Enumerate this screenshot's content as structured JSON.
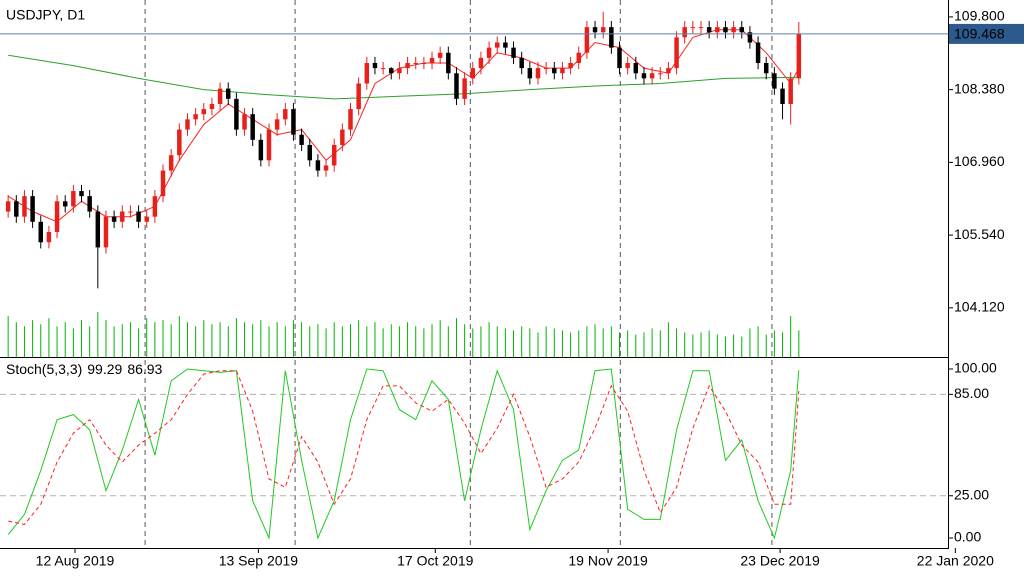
{
  "chart_data": [
    {
      "type": "candlestick",
      "title": "USDJPY, D1",
      "up_color": "#e8201c",
      "down_color": "#000000",
      "open": [
        106.0,
        106.2,
        105.9,
        106.3,
        105.8,
        105.4,
        105.6,
        106.2,
        106.1,
        106.4,
        106.3,
        106.0,
        105.3,
        105.9,
        105.8,
        106.0,
        106.0,
        105.8,
        105.9,
        106.3,
        106.8,
        107.1,
        107.6,
        107.8,
        107.9,
        108.0,
        108.1,
        108.4,
        108.2,
        107.6,
        107.9,
        107.4,
        107.0,
        107.6,
        107.8,
        108.0,
        107.5,
        107.3,
        107.0,
        106.8,
        106.9,
        107.3,
        107.6,
        108.0,
        108.5,
        108.9,
        108.8,
        108.8,
        108.7,
        108.8,
        108.9,
        108.9,
        108.9,
        109.0,
        109.1,
        108.7,
        108.2,
        108.6,
        108.8,
        109.0,
        109.2,
        109.3,
        109.2,
        109.0,
        108.8,
        108.6,
        108.8,
        108.8,
        108.7,
        108.8,
        108.9,
        109.1,
        109.6,
        109.5,
        109.6,
        109.2,
        108.8,
        108.9,
        108.7,
        108.6,
        108.7,
        108.7,
        108.8,
        109.4,
        109.6,
        109.6,
        109.6,
        109.5,
        109.6,
        109.5,
        109.6,
        109.5,
        109.3,
        108.9,
        108.7,
        108.4,
        108.1,
        108.6
      ],
      "high": [
        106.32,
        106.32,
        106.42,
        106.42,
        105.92,
        105.72,
        106.32,
        106.32,
        106.52,
        106.52,
        106.42,
        106.12,
        106.02,
        106.02,
        106.12,
        106.12,
        106.12,
        106.02,
        106.42,
        106.92,
        107.22,
        107.72,
        107.92,
        108.02,
        108.12,
        108.22,
        108.52,
        108.52,
        108.32,
        108.02,
        108.02,
        107.52,
        107.72,
        107.92,
        108.12,
        108.12,
        107.62,
        107.42,
        107.12,
        107.02,
        107.42,
        107.72,
        108.12,
        108.62,
        109.02,
        109.02,
        108.92,
        108.82,
        108.92,
        109.02,
        109.02,
        109.02,
        109.12,
        109.22,
        109.22,
        108.82,
        108.72,
        108.92,
        109.12,
        109.32,
        109.42,
        109.42,
        109.32,
        109.12,
        108.92,
        108.92,
        108.92,
        108.92,
        108.92,
        109.02,
        109.22,
        109.72,
        109.72,
        109.9,
        109.72,
        109.32,
        109.02,
        109.02,
        108.82,
        108.82,
        108.82,
        108.92,
        109.52,
        109.72,
        109.72,
        109.72,
        109.72,
        109.72,
        109.72,
        109.72,
        109.72,
        109.62,
        109.42,
        109.02,
        108.82,
        108.52,
        108.72,
        109.7
      ],
      "low": [
        105.88,
        105.78,
        105.78,
        105.68,
        105.28,
        105.28,
        105.48,
        105.98,
        105.98,
        106.18,
        105.88,
        104.5,
        105.18,
        105.68,
        105.68,
        105.88,
        105.68,
        105.68,
        105.78,
        106.18,
        106.68,
        106.98,
        107.48,
        107.68,
        107.78,
        107.88,
        107.98,
        108.08,
        107.48,
        107.48,
        107.28,
        106.88,
        106.88,
        107.48,
        107.68,
        107.38,
        107.18,
        106.88,
        106.68,
        106.68,
        106.78,
        107.18,
        107.48,
        107.88,
        108.38,
        108.68,
        108.68,
        108.58,
        108.58,
        108.68,
        108.78,
        108.78,
        108.78,
        108.88,
        108.58,
        108.08,
        108.08,
        108.48,
        108.68,
        108.88,
        109.08,
        109.08,
        108.88,
        108.68,
        108.48,
        108.48,
        108.68,
        108.58,
        108.58,
        108.68,
        108.78,
        108.98,
        109.38,
        109.38,
        109.08,
        108.68,
        108.68,
        108.58,
        108.48,
        108.48,
        108.58,
        108.58,
        108.68,
        109.28,
        109.48,
        109.48,
        109.38,
        109.38,
        109.38,
        109.38,
        109.38,
        109.18,
        108.78,
        108.58,
        108.28,
        107.8,
        107.7,
        108.48
      ],
      "close": [
        106.2,
        105.9,
        106.3,
        105.8,
        105.4,
        105.6,
        106.2,
        106.1,
        106.4,
        106.3,
        106.0,
        105.3,
        105.9,
        105.8,
        106.0,
        106.0,
        105.8,
        105.9,
        106.3,
        106.8,
        107.1,
        107.6,
        107.8,
        107.9,
        108.0,
        108.1,
        108.4,
        108.2,
        107.6,
        107.9,
        107.4,
        107.0,
        107.6,
        107.8,
        108.0,
        107.5,
        107.3,
        107.0,
        106.8,
        106.9,
        107.3,
        107.6,
        108.0,
        108.5,
        108.9,
        108.8,
        108.8,
        108.7,
        108.8,
        108.9,
        108.9,
        108.9,
        109.0,
        109.1,
        108.7,
        108.2,
        108.6,
        108.8,
        109.0,
        109.2,
        109.3,
        109.2,
        109.0,
        108.8,
        108.6,
        108.8,
        108.8,
        108.7,
        108.8,
        108.9,
        109.1,
        109.6,
        109.5,
        109.6,
        109.2,
        108.8,
        108.9,
        108.7,
        108.6,
        108.7,
        108.7,
        108.8,
        109.4,
        109.6,
        109.6,
        109.6,
        109.5,
        109.6,
        109.5,
        109.6,
        109.5,
        109.3,
        108.9,
        108.7,
        108.4,
        108.1,
        108.6,
        109.47
      ],
      "volume": {
        "color": "#00b400",
        "values": [
          40,
          34,
          30,
          36,
          32,
          38,
          30,
          34,
          28,
          36,
          30,
          44,
          36,
          30,
          32,
          34,
          28,
          38,
          34,
          36,
          32,
          40,
          34,
          30,
          36,
          32,
          34,
          30,
          38,
          34,
          32,
          36,
          30,
          34,
          30,
          36,
          34,
          30,
          32,
          28,
          34,
          30,
          32,
          36,
          30,
          34,
          28,
          32,
          30,
          34,
          30,
          28,
          32,
          36,
          30,
          38,
          32,
          28,
          30,
          34,
          30,
          28,
          26,
          30,
          28,
          24,
          30,
          28,
          26,
          24,
          26,
          30,
          32,
          28,
          30,
          24,
          26,
          22,
          24,
          28,
          26,
          34,
          28,
          24,
          22,
          24,
          26,
          22,
          20,
          22,
          20,
          28,
          30,
          22,
          26,
          24,
          40,
          26
        ]
      },
      "series": [
        {
          "color": "#ff2020",
          "x": [
            0,
            3,
            6,
            9,
            12,
            15,
            18,
            21,
            24,
            27,
            30,
            33,
            36,
            39,
            42,
            45,
            48,
            51,
            54,
            57,
            60,
            63,
            66,
            69,
            72,
            75,
            78,
            81,
            84,
            87,
            90,
            93,
            96,
            97
          ],
          "values": [
            106.3,
            106.0,
            105.8,
            106.2,
            105.9,
            105.9,
            106.1,
            107.0,
            107.7,
            108.1,
            107.8,
            107.5,
            107.6,
            107.0,
            107.4,
            108.5,
            108.8,
            108.9,
            108.9,
            108.6,
            109.1,
            109.0,
            108.8,
            108.8,
            109.3,
            109.2,
            108.8,
            108.7,
            109.4,
            109.55,
            109.55,
            109.1,
            108.5,
            108.8
          ]
        },
        {
          "color": "#2ca02c",
          "x": [
            0,
            8,
            16,
            24,
            32,
            40,
            48,
            56,
            64,
            72,
            80,
            88,
            97
          ],
          "values": [
            109.05,
            108.85,
            108.6,
            108.38,
            108.28,
            108.2,
            108.25,
            108.3,
            108.38,
            108.45,
            108.5,
            108.6,
            108.62
          ]
        }
      ],
      "current_price": {
        "value": 109.468,
        "label": "109.468"
      },
      "xlim": [
        -1,
        115.3
      ],
      "xticks": [
        {
          "value": 8.2,
          "label": "12 Aug 2019"
        },
        {
          "value": 30.7,
          "label": "13 Sep 2019"
        },
        {
          "value": 52.4,
          "label": "17 Oct 2019"
        },
        {
          "value": 73.6,
          "label": "19 Nov 2019"
        },
        {
          "value": 94.7,
          "label": "23 Dec 2019"
        },
        {
          "value": 116.2,
          "label": "22 Jan 2020"
        }
      ],
      "xgrid": [
        16.8,
        35.2,
        56.7,
        75.1,
        93.7
      ],
      "ylim": [
        103.16,
        110.13
      ],
      "yticks": [
        {
          "value": 104.12,
          "label": "104.120"
        },
        {
          "value": 105.54,
          "label": "105.540"
        },
        {
          "value": 106.96,
          "label": "106.960"
        },
        {
          "value": 108.38,
          "label": "108.380"
        },
        {
          "value": 109.8,
          "label": "109.800"
        }
      ]
    },
    {
      "type": "line",
      "title": "Stoch(5,3,3)",
      "readout": [
        99.29,
        86.93
      ],
      "series": [
        {
          "color": "#22c922",
          "dash": false,
          "x": [
            0,
            2,
            4,
            6,
            8,
            10,
            12,
            14,
            16,
            18,
            20,
            22,
            24,
            26,
            28,
            30,
            32,
            34,
            36,
            38,
            40,
            42,
            44,
            46,
            48,
            50,
            52,
            54,
            56,
            58,
            60,
            62,
            64,
            66,
            68,
            70,
            72,
            74,
            76,
            78,
            80,
            82,
            84,
            86,
            88,
            90,
            92,
            94,
            96,
            97
          ],
          "values": [
            2,
            14,
            40,
            70,
            73,
            64,
            28,
            52,
            82,
            49,
            93,
            100,
            99,
            98,
            99,
            22,
            0,
            99,
            46,
            0,
            22,
            70,
            100,
            99,
            76,
            70,
            93,
            82,
            22,
            64,
            99,
            76,
            5,
            28,
            46,
            52,
            99,
            100,
            17,
            11,
            11,
            64,
            99,
            99,
            46,
            58,
            22,
            0,
            40,
            99.29
          ]
        },
        {
          "color": "#ff2020",
          "dash": true,
          "x": [
            0,
            2,
            4,
            6,
            8,
            10,
            12,
            14,
            16,
            18,
            20,
            22,
            24,
            26,
            28,
            30,
            32,
            34,
            36,
            38,
            40,
            42,
            44,
            46,
            48,
            50,
            52,
            54,
            56,
            58,
            60,
            62,
            64,
            66,
            68,
            70,
            72,
            74,
            76,
            78,
            80,
            82,
            84,
            86,
            88,
            90,
            92,
            94,
            96,
            97
          ],
          "values": [
            10,
            8,
            20,
            45,
            62,
            70,
            55,
            45,
            55,
            62,
            70,
            85,
            97,
            99,
            99,
            75,
            35,
            30,
            60,
            45,
            20,
            35,
            70,
            90,
            90,
            80,
            75,
            82,
            68,
            50,
            65,
            85,
            60,
            30,
            35,
            45,
            65,
            90,
            75,
            40,
            15,
            30,
            65,
            90,
            75,
            55,
            45,
            20,
            20,
            86.93
          ]
        }
      ],
      "levels": [
        25,
        85
      ],
      "xlim": [
        -1,
        115.3
      ],
      "ylim": [
        -5.9,
        106.5
      ],
      "yticks": [
        {
          "value": 0,
          "label": "0.00"
        },
        {
          "value": 25,
          "label": "25.00"
        },
        {
          "value": 85,
          "label": "85.00"
        },
        {
          "value": 100,
          "label": "100.00"
        }
      ]
    }
  ]
}
